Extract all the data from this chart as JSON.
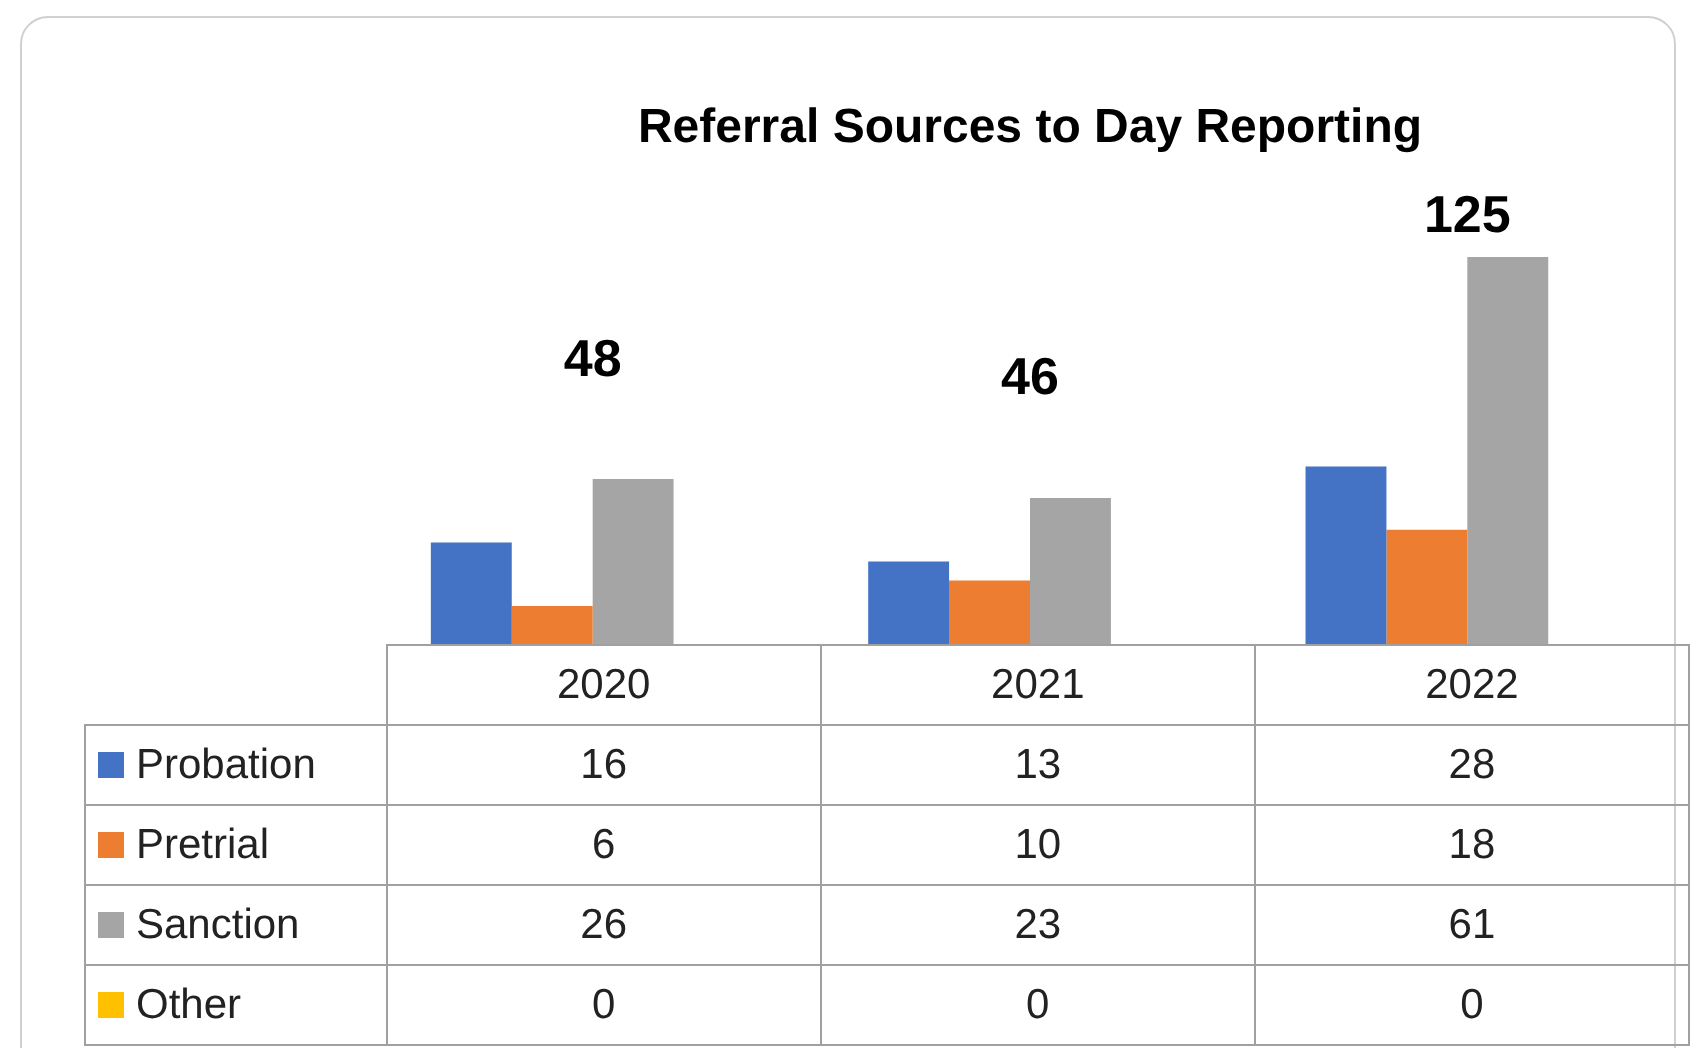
{
  "chart_data": {
    "type": "bar",
    "title": "Referral Sources to Day Reporting",
    "categories": [
      "2020",
      "2021",
      "2022"
    ],
    "series": [
      {
        "name": "Probation",
        "color": "#4472c4",
        "values": [
          16,
          13,
          28
        ]
      },
      {
        "name": "Pretrial",
        "color": "#ed7d31",
        "values": [
          6,
          10,
          18
        ]
      },
      {
        "name": "Sanction",
        "color": "#a5a5a5",
        "values": [
          26,
          23,
          61
        ]
      },
      {
        "name": "Other",
        "color": "#ffc000",
        "values": [
          0,
          0,
          0
        ]
      }
    ],
    "annotations": [
      "48",
      "46",
      "125"
    ],
    "data_labels": true,
    "legend": "bottom",
    "tick_labels": "x"
  }
}
